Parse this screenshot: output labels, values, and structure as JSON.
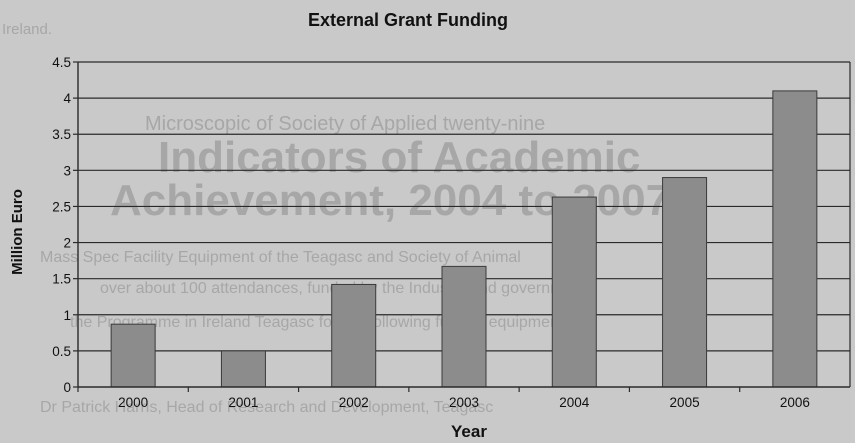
{
  "colors": {
    "background": "#c9c9c9",
    "bar_fill": "#8c8c8c",
    "bar_stroke": "#3a3a3a",
    "grid": "#2a2a2a",
    "text": "#111111",
    "background_text": "#a7a7a7"
  },
  "background_document": {
    "line_1": "Ireland.",
    "line_2": "Microscopic of Society of Applied twenty-nine",
    "heading_1": "Indicators of Academic",
    "heading_2": "Achievement, 2004 to 2007",
    "body_1": "Mass Spec Facility Equipment of the Teagasc and Society of Animal",
    "body_2": "over about 100 attendances, funded by the Industry and government",
    "body_3": "the Programme in Ireland Teagasc for the following funded equipment",
    "body_4": "Dr Patrick Harris, Head of Research and Development, Teagasc"
  },
  "chart_data": {
    "type": "bar",
    "title": "External Grant Funding",
    "xlabel": "Year",
    "ylabel": "Million Euro",
    "categories": [
      "2000",
      "2001",
      "2002",
      "2003",
      "2004",
      "2005",
      "2006"
    ],
    "values": [
      0.87,
      0.5,
      1.42,
      1.67,
      2.63,
      2.9,
      4.1
    ],
    "ylim": [
      0,
      4.5
    ],
    "yticks": [
      "0",
      "0.5",
      "1",
      "1.5",
      "2",
      "2.5",
      "3",
      "3.5",
      "4",
      "4.5"
    ],
    "grid": true,
    "legend": "none"
  }
}
